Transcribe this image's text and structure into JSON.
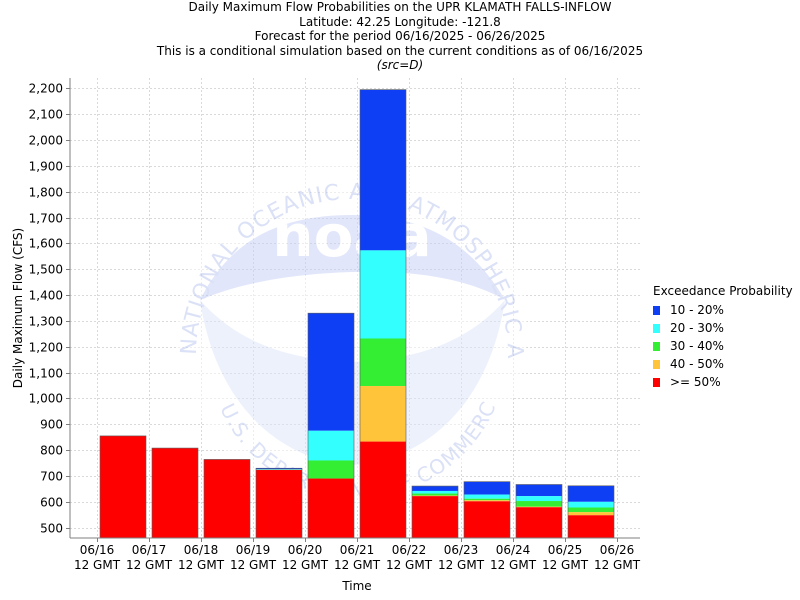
{
  "header": {
    "lines": [
      "Daily Maximum Flow Probabilities on the UPR KLAMATH FALLS-INFLOW",
      "Latitude: 42.25 Longitude: -121.8",
      "Forecast for the period 06/16/2025 - 06/26/2025",
      "This is a conditional simulation based on the current conditions as of 06/16/2025"
    ],
    "source": "(src=D)"
  },
  "watermark": {
    "logo_text": "noaa",
    "ring_text": "NATIONAL OCEANIC AND ATMOSPHERIC ADMINISTRATION",
    "bottom_text": "U.S. DEPARTMENT OF COMMERCE"
  },
  "chart_data": {
    "type": "bar",
    "stacked": true,
    "xlabel": "Time",
    "ylabel": "Daily Maximum Flow (CFS)",
    "ylim": [
      460,
      2240
    ],
    "yticks": [
      500,
      600,
      700,
      800,
      900,
      1000,
      1100,
      1200,
      1300,
      1400,
      1500,
      1600,
      1700,
      1800,
      1900,
      2000,
      2100,
      2200
    ],
    "ytick_labels": [
      "500",
      "600",
      "700",
      "800",
      "900",
      "1,000",
      "1,100",
      "1,200",
      "1,300",
      "1,400",
      "1,500",
      "1,600",
      "1,700",
      "1,800",
      "1,900",
      "2,000",
      "2,100",
      "2,200"
    ],
    "xticks": [
      {
        "date": "06/16",
        "time": "12 GMT"
      },
      {
        "date": "06/17",
        "time": "12 GMT"
      },
      {
        "date": "06/18",
        "time": "12 GMT"
      },
      {
        "date": "06/19",
        "time": "12 GMT"
      },
      {
        "date": "06/20",
        "time": "12 GMT"
      },
      {
        "date": "06/21",
        "time": "12 GMT"
      },
      {
        "date": "06/22",
        "time": "12 GMT"
      },
      {
        "date": "06/23",
        "time": "12 GMT"
      },
      {
        "date": "06/24",
        "time": "12 GMT"
      },
      {
        "date": "06/25",
        "time": "12 GMT"
      },
      {
        "date": "06/26",
        "time": "12 GMT"
      }
    ],
    "grid": true,
    "legend": {
      "title": "Exceedance Probability",
      "placement": "right",
      "entries": [
        {
          "label": "10 - 20%",
          "color": "#0f3ff5"
        },
        {
          "label": "20 - 30%",
          "color": "#33ffff"
        },
        {
          "label": "30 - 40%",
          "color": "#33ee33"
        },
        {
          "label": "40 - 50%",
          "color": "#ffc43a"
        },
        {
          "label": ">= 50%",
          "color": "#ff0000"
        }
      ]
    },
    "series_colors": {
      "ge50": "#ff0000",
      "p40_50": "#ffc43a",
      "p30_40": "#33ee33",
      "p20_30": "#33ffff",
      "p10_20": "#0f3ff5"
    },
    "bars": [
      {
        "period": "06/16 - 06/17",
        "ge50": 855,
        "p40_50": 855,
        "p30_40": 855,
        "p20_30": 855,
        "p10_20": 855
      },
      {
        "period": "06/17 - 06/18",
        "ge50": 808,
        "p40_50": 808,
        "p30_40": 808,
        "p20_30": 808,
        "p10_20": 808
      },
      {
        "period": "06/18 - 06/19",
        "ge50": 764,
        "p40_50": 764,
        "p30_40": 764,
        "p20_30": 764,
        "p10_20": 764
      },
      {
        "period": "06/19 - 06/20",
        "ge50": 724,
        "p40_50": 724,
        "p30_40": 724,
        "p20_30": 727,
        "p10_20": 730
      },
      {
        "period": "06/20 - 06/21",
        "ge50": 690,
        "p40_50": 690,
        "p30_40": 760,
        "p20_30": 875,
        "p10_20": 1330
      },
      {
        "period": "06/21 - 06/22",
        "ge50": 833,
        "p40_50": 1048,
        "p30_40": 1232,
        "p20_30": 1573,
        "p10_20": 2195
      },
      {
        "period": "06/22 - 06/23",
        "ge50": 622,
        "p40_50": 624,
        "p30_40": 632,
        "p20_30": 642,
        "p10_20": 661
      },
      {
        "period": "06/23 - 06/24",
        "ge50": 602,
        "p40_50": 606,
        "p30_40": 612,
        "p20_30": 628,
        "p10_20": 678
      },
      {
        "period": "06/24 - 06/25",
        "ge50": 579,
        "p40_50": 581,
        "p30_40": 603,
        "p20_30": 622,
        "p10_20": 667
      },
      {
        "period": "06/25 - 06/26",
        "ge50": 548,
        "p40_50": 560,
        "p30_40": 578,
        "p20_30": 600,
        "p10_20": 662
      }
    ]
  }
}
